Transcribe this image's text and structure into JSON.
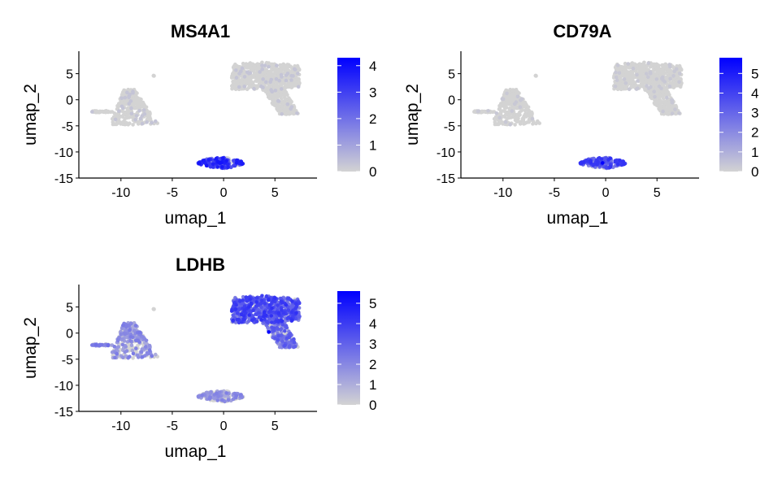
{
  "chart_data": [
    {
      "type": "scatter",
      "title": "MS4A1",
      "xlabel": "umap_1",
      "ylabel": "umap_2",
      "xlim": [
        -14.1,
        9.1
      ],
      "ylim": [
        -15,
        9.3
      ],
      "xticks": [
        -10,
        -5,
        0,
        5
      ],
      "yticks": [
        -15,
        -10,
        -5,
        0,
        5
      ],
      "grid": false,
      "legend": {
        "position": "right",
        "type": "colorbar",
        "ticks": [
          0,
          1,
          2,
          3,
          4
        ],
        "max": 4.3,
        "low_color": "#d3d3d3",
        "high_color": "#0000ff"
      },
      "cluster_expression": {
        "left_tail": 0.1,
        "left_blob": 0.2,
        "small_dot": 0,
        "right_main": 0.15,
        "right_tail": 0.15,
        "bottom": 2.6
      },
      "expression_fraction": {
        "left_tail": 0.05,
        "left_blob": 0.06,
        "small_dot": 0,
        "right_main": 0.04,
        "right_tail": 0.05,
        "bottom": 0.85
      }
    },
    {
      "type": "scatter",
      "title": "CD79A",
      "xlabel": "umap_1",
      "ylabel": "umap_2",
      "xlim": [
        -14.1,
        9.1
      ],
      "ylim": [
        -15,
        9.3
      ],
      "xticks": [
        -10,
        -5,
        0,
        5
      ],
      "yticks": [
        -15,
        -10,
        -5,
        0,
        5
      ],
      "grid": false,
      "legend": {
        "position": "right",
        "type": "colorbar",
        "ticks": [
          0,
          1,
          2,
          3,
          4,
          5
        ],
        "max": 5.8,
        "low_color": "#d3d3d3",
        "high_color": "#0000ff"
      },
      "cluster_expression": {
        "left_tail": 0.2,
        "left_blob": 0.2,
        "small_dot": 0,
        "right_main": 0.2,
        "right_tail": 0.2,
        "bottom": 3.0
      },
      "expression_fraction": {
        "left_tail": 0.1,
        "left_blob": 0.05,
        "small_dot": 0,
        "right_main": 0.05,
        "right_tail": 0.05,
        "bottom": 0.9
      }
    },
    {
      "type": "scatter",
      "title": "LDHB",
      "xlabel": "umap_1",
      "ylabel": "umap_2",
      "xlim": [
        -14.1,
        9.1
      ],
      "ylim": [
        -15,
        9.3
      ],
      "xticks": [
        -10,
        -5,
        0,
        5
      ],
      "yticks": [
        -15,
        -10,
        -5,
        0,
        5
      ],
      "grid": false,
      "legend": {
        "position": "right",
        "type": "colorbar",
        "ticks": [
          0,
          1,
          2,
          3,
          4,
          5
        ],
        "max": 5.6,
        "low_color": "#d3d3d3",
        "high_color": "#0000ff"
      },
      "cluster_expression": {
        "left_tail": 1.8,
        "left_blob": 1.6,
        "small_dot": 0,
        "right_main": 2.9,
        "right_tail": 2.3,
        "bottom": 1.5
      },
      "expression_fraction": {
        "left_tail": 0.7,
        "left_blob": 0.5,
        "small_dot": 0,
        "right_main": 0.9,
        "right_tail": 0.6,
        "bottom": 0.45
      }
    }
  ]
}
